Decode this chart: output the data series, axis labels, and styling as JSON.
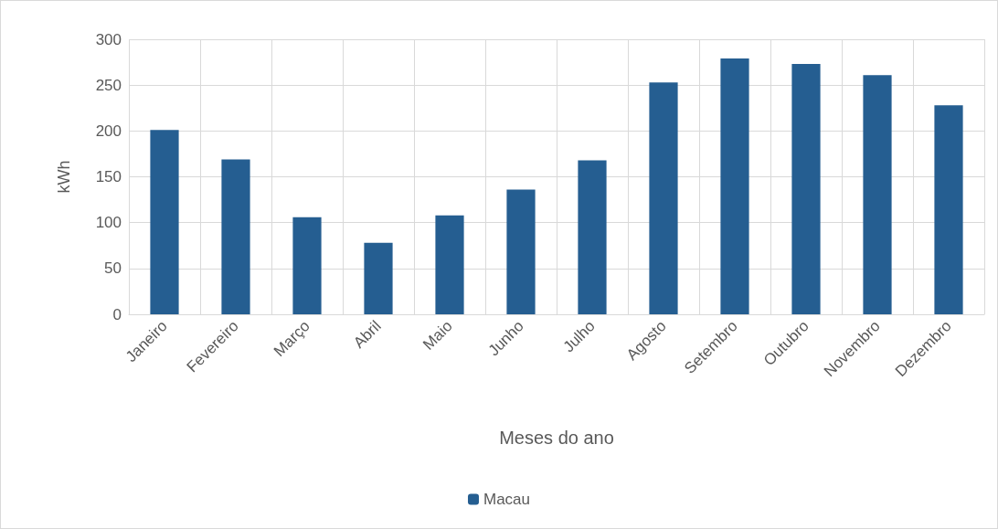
{
  "chart_data": {
    "type": "bar",
    "xlabel": "Meses do ano",
    "ylabel": "kWh",
    "categories": [
      "Janeiro",
      "Fevereiro",
      "Março",
      "Abril",
      "Maio",
      "Junho",
      "Julho",
      "Agosto",
      "Setembro",
      "Outubro",
      "Novembro",
      "Dezembro"
    ],
    "series": [
      {
        "name": "Macau",
        "color": "#255e91",
        "values": [
          201,
          169,
          106,
          78,
          108,
          136,
          168,
          253,
          279,
          273,
          261,
          228
        ]
      }
    ],
    "ylim": [
      0,
      300
    ],
    "yticks": [
      0,
      50,
      100,
      150,
      200,
      250,
      300
    ],
    "grid": true,
    "legend": "bottom"
  }
}
